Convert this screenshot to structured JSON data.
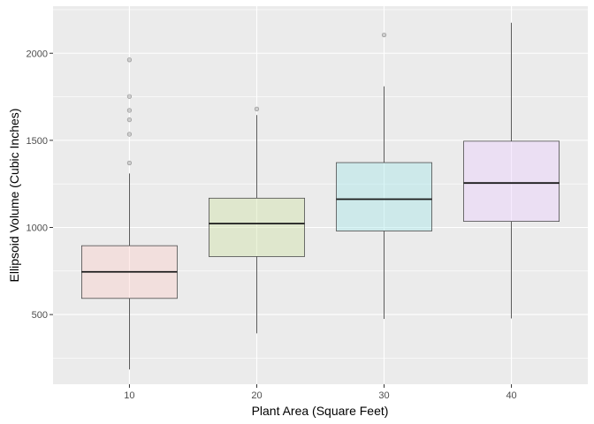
{
  "chart_data": {
    "type": "boxplot",
    "title": "",
    "xlabel": "Plant Area (Square Feet)",
    "ylabel": "Ellipsoid Volume (Cubic Inches)",
    "categories": [
      "10",
      "20",
      "30",
      "40"
    ],
    "ylim": [
      100,
      2270
    ],
    "yticks": [
      500,
      1000,
      1500,
      2000
    ],
    "grid": true,
    "legend": "none",
    "boxes": [
      {
        "category": "10",
        "whisker_low": 185,
        "q1": 593,
        "median": 745,
        "q3": 895,
        "whisker_high": 1310,
        "outliers": [
          1370,
          1535,
          1618,
          1672,
          1752,
          1962
        ],
        "fill": "#f8766d"
      },
      {
        "category": "20",
        "whisker_low": 392,
        "q1": 833,
        "median": 1022,
        "q3": 1168,
        "whisker_high": 1645,
        "outliers": [
          1680
        ],
        "fill": "#7cae00"
      },
      {
        "category": "30",
        "whisker_low": 475,
        "q1": 980,
        "median": 1162,
        "q3": 1372,
        "whisker_high": 1810,
        "outliers": [
          2105
        ],
        "fill": "#00bfc4"
      },
      {
        "category": "40",
        "whisker_low": 478,
        "q1": 1035,
        "median": 1255,
        "q3": 1495,
        "whisker_high": 2175,
        "outliers": [],
        "fill": "#c77cff"
      }
    ],
    "colors": {
      "panel": "#ebebeb",
      "grid_major": "#ffffff",
      "box_outline": "#333333",
      "outlier": "#bdbdbd"
    }
  }
}
